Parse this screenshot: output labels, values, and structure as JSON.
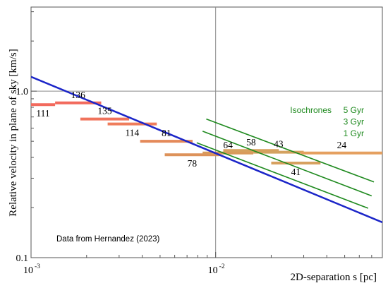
{
  "chart_data": {
    "type": "scatter",
    "xscale": "log",
    "yscale": "log",
    "xlim": [
      0.001,
      0.08
    ],
    "ylim": [
      0.1,
      3.2
    ],
    "xlabel": "2D-separation  s [pc]",
    "ylabel": "Relative velocity in plane of sky  [km/s]",
    "x_ticks": [
      {
        "value": 0.001,
        "label": "10",
        "exp": "-3"
      },
      {
        "value": 0.01,
        "label": "10",
        "exp": "-2"
      }
    ],
    "y_ticks": [
      {
        "value": 0.1,
        "label": "0.1"
      },
      {
        "value": 1.0,
        "label": "1.0"
      }
    ],
    "grid": {
      "x": [
        0.01
      ],
      "y": [
        1.0
      ]
    },
    "annotation": "Data from Hernandez (2023)",
    "isochrone_title": "Isochrones",
    "series": [
      {
        "kind": "binned-data",
        "segments": [
          {
            "x0": 0.001,
            "x1": 0.00135,
            "y": 0.83,
            "label": "111",
            "label_pos": "below",
            "color": "#f26a5d"
          },
          {
            "x0": 0.00135,
            "x1": 0.0024,
            "y": 0.85,
            "label": "136",
            "label_pos": "above",
            "color": "#f26a5d"
          },
          {
            "x0": 0.00185,
            "x1": 0.0034,
            "y": 0.68,
            "label": "135",
            "label_pos": "above",
            "color": "#f0735c"
          },
          {
            "x0": 0.0026,
            "x1": 0.0048,
            "y": 0.635,
            "label": "114",
            "label_pos": "below",
            "color": "#ef7d5c"
          },
          {
            "x0": 0.0039,
            "x1": 0.0075,
            "y": 0.5,
            "label": "81",
            "label_pos": "above",
            "color": "#e48a5a"
          },
          {
            "x0": 0.0053,
            "x1": 0.0105,
            "y": 0.415,
            "label": "78",
            "label_pos": "below",
            "color": "#dd925a"
          },
          {
            "x0": 0.0085,
            "x1": 0.016,
            "y": 0.425,
            "label": "64",
            "label_pos": "above",
            "color": "#d99a5c"
          },
          {
            "x0": 0.011,
            "x1": 0.022,
            "y": 0.44,
            "label": "58",
            "label_pos": "above",
            "color": "#d6a05e"
          },
          {
            "x0": 0.016,
            "x1": 0.03,
            "y": 0.43,
            "label": "43",
            "label_pos": "above",
            "color": "#d4a260"
          },
          {
            "x0": 0.02,
            "x1": 0.037,
            "y": 0.37,
            "label": "41",
            "label_pos": "below",
            "color": "#d7a160"
          },
          {
            "x0": 0.029,
            "x1": 0.08,
            "y": 0.425,
            "label": "24",
            "label_pos": "above",
            "color": "#e5a060"
          }
        ]
      },
      {
        "kind": "model-line",
        "color": "#1b25c8",
        "points": [
          [
            0.001,
            1.22
          ],
          [
            0.08,
            0.163
          ]
        ]
      },
      {
        "kind": "isochrone",
        "name": "5 Gyr",
        "color": "#1f8a1f",
        "points": [
          [
            0.0089,
            0.68
          ],
          [
            0.072,
            0.285
          ]
        ]
      },
      {
        "kind": "isochrone",
        "name": "3 Gyr",
        "color": "#1f8a1f",
        "points": [
          [
            0.0085,
            0.575
          ],
          [
            0.07,
            0.235
          ]
        ]
      },
      {
        "kind": "isochrone",
        "name": "1 Gyr",
        "color": "#1f8a1f",
        "points": [
          [
            0.0079,
            0.49
          ],
          [
            0.067,
            0.198
          ]
        ]
      }
    ]
  }
}
